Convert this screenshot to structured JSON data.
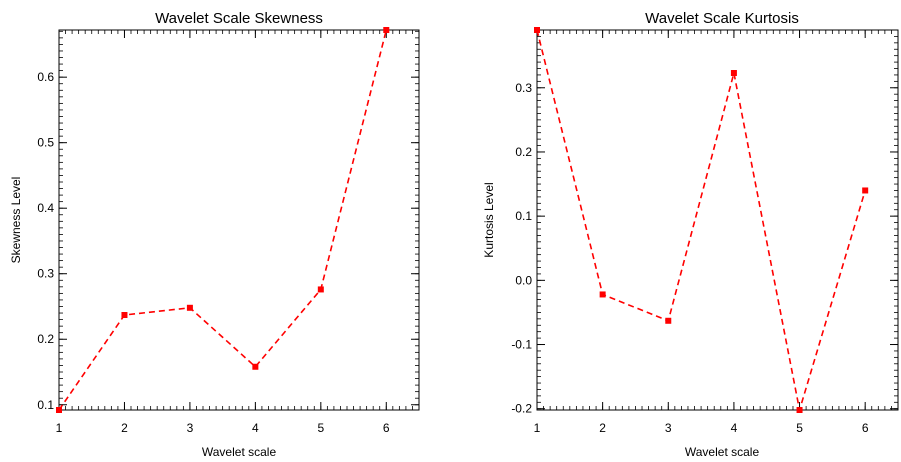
{
  "chart_data": [
    {
      "type": "line",
      "title": "Wavelet Scale Skewness",
      "xlabel": "Wavelet scale",
      "ylabel": "Skewness Level",
      "x": [
        1,
        2,
        3,
        4,
        5,
        6
      ],
      "series": [
        {
          "values": [
            0.092,
            0.237,
            0.248,
            0.158,
            0.276,
            0.672
          ]
        }
      ],
      "xlim": [
        1,
        6.5
      ],
      "ylim": [
        0.092,
        0.672
      ],
      "xticks": [
        "1",
        "2",
        "3",
        "4",
        "5",
        "6"
      ],
      "yticks": [
        "0.1",
        "0.2",
        "0.3",
        "0.4",
        "0.5",
        "0.6"
      ],
      "ytick_values": [
        0.1,
        0.2,
        0.3,
        0.4,
        0.5,
        0.6
      ],
      "line_style": "dashed",
      "marker": "square",
      "color": "#ff0000",
      "grid": false
    },
    {
      "type": "line",
      "title": "Wavelet Scale Kurtosis",
      "xlabel": "Wavelet scale",
      "ylabel": "Kurtosis Level",
      "x": [
        1,
        2,
        3,
        4,
        5,
        6
      ],
      "series": [
        {
          "values": [
            0.39,
            -0.022,
            -0.063,
            0.323,
            -0.202,
            0.14
          ]
        }
      ],
      "xlim": [
        1,
        6.5
      ],
      "ylim": [
        -0.202,
        0.39
      ],
      "xticks": [
        "1",
        "2",
        "3",
        "4",
        "5",
        "6"
      ],
      "yticks": [
        "-0.2",
        "-0.1",
        "0.0",
        "0.1",
        "0.2",
        "0.3"
      ],
      "ytick_values": [
        -0.2,
        -0.1,
        0.0,
        0.1,
        0.2,
        0.3
      ],
      "line_style": "dashed",
      "marker": "square",
      "color": "#ff0000",
      "grid": false
    }
  ]
}
